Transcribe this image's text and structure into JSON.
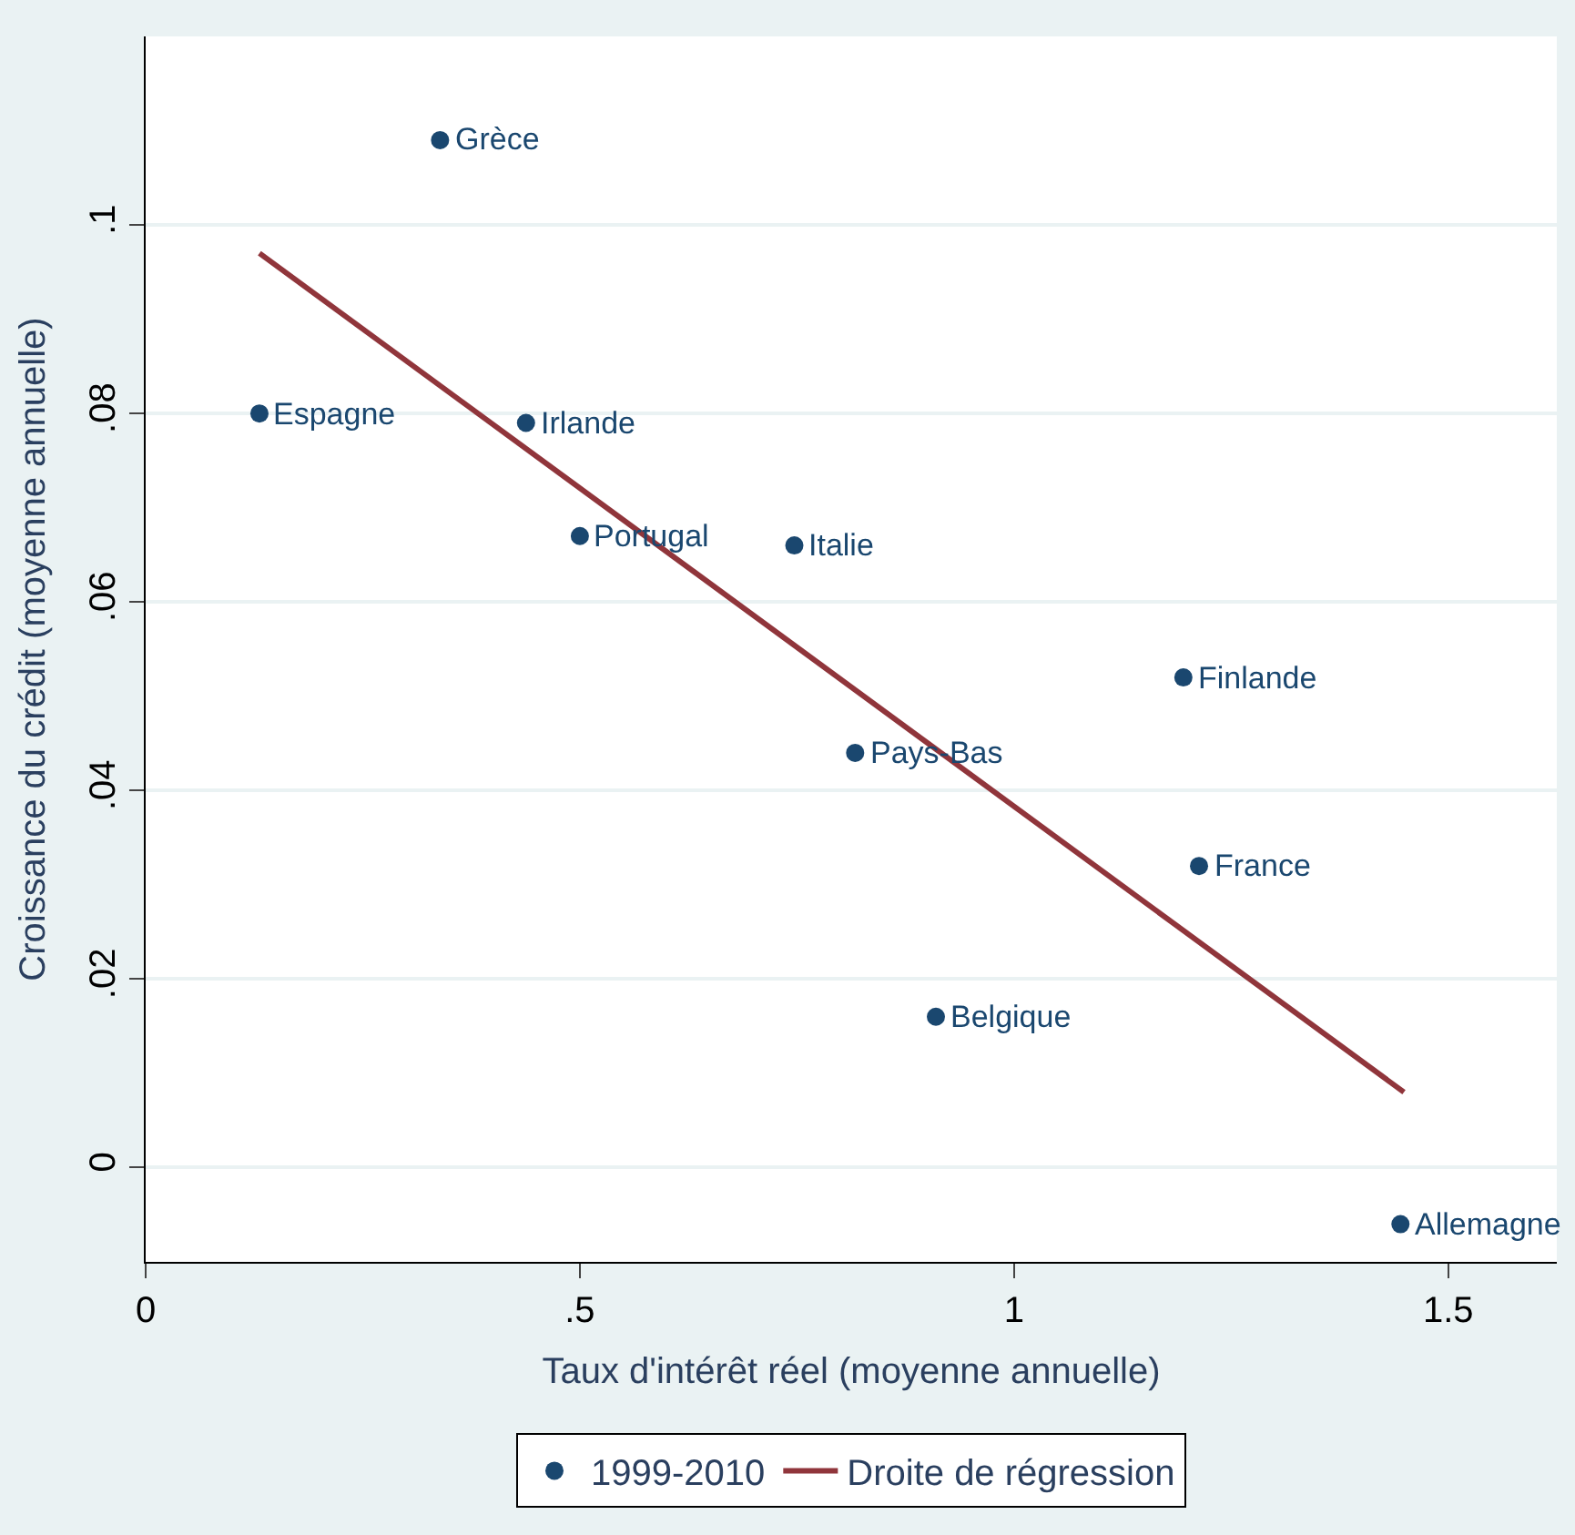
{
  "chart_data": {
    "type": "scatter",
    "xlabel": "Taux d'intérêt réel (moyenne annuelle)",
    "ylabel": "Croissance du crédit (moyenne annuelle)",
    "series": [
      {
        "name": "1999-2010",
        "color": "#1a476f",
        "marker": "circle",
        "x": [
          0.339,
          0.131,
          0.438,
          0.5,
          0.747,
          1.195,
          0.817,
          1.213,
          0.91,
          1.445
        ],
        "values": [
          0.109,
          0.08,
          0.079,
          0.067,
          0.066,
          0.052,
          0.044,
          0.032,
          0.016,
          -0.006
        ]
      },
      {
        "name": "Droite de régression",
        "type": "line",
        "color": "#90353b",
        "line_style": "solid",
        "x": [
          0.131,
          1.449
        ],
        "values": [
          0.097,
          0.008
        ]
      }
    ],
    "annotations": [
      {
        "text": "Grèce",
        "x": 0.339,
        "y": 0.109
      },
      {
        "text": "Espagne",
        "x": 0.131,
        "y": 0.08
      },
      {
        "text": "Irlande",
        "x": 0.438,
        "y": 0.079
      },
      {
        "text": "Portugal",
        "x": 0.5,
        "y": 0.067
      },
      {
        "text": "Italie",
        "x": 0.747,
        "y": 0.066
      },
      {
        "text": "Finlande",
        "x": 1.195,
        "y": 0.052
      },
      {
        "text": "Pays-Bas",
        "x": 0.817,
        "y": 0.044
      },
      {
        "text": "France",
        "x": 1.213,
        "y": 0.032
      },
      {
        "text": "Belgique",
        "x": 0.91,
        "y": 0.016
      },
      {
        "text": "Allemagne",
        "x": 1.445,
        "y": -0.006
      }
    ],
    "xlim": [
      0,
      1.625
    ],
    "xticks": [
      0,
      {
        "value": 0.5,
        "label": ".5"
      },
      1,
      1.5
    ],
    "ylim": [
      -0.01,
      0.12
    ],
    "yticks": [
      0,
      {
        "value": 0.02,
        "label": ".02"
      },
      {
        "value": 0.04,
        "label": ".04"
      },
      {
        "value": 0.06,
        "label": ".06"
      },
      {
        "value": 0.08,
        "label": ".08"
      },
      {
        "value": 0.1,
        "label": ".1"
      }
    ],
    "grid": "y",
    "legend": "bottom"
  }
}
